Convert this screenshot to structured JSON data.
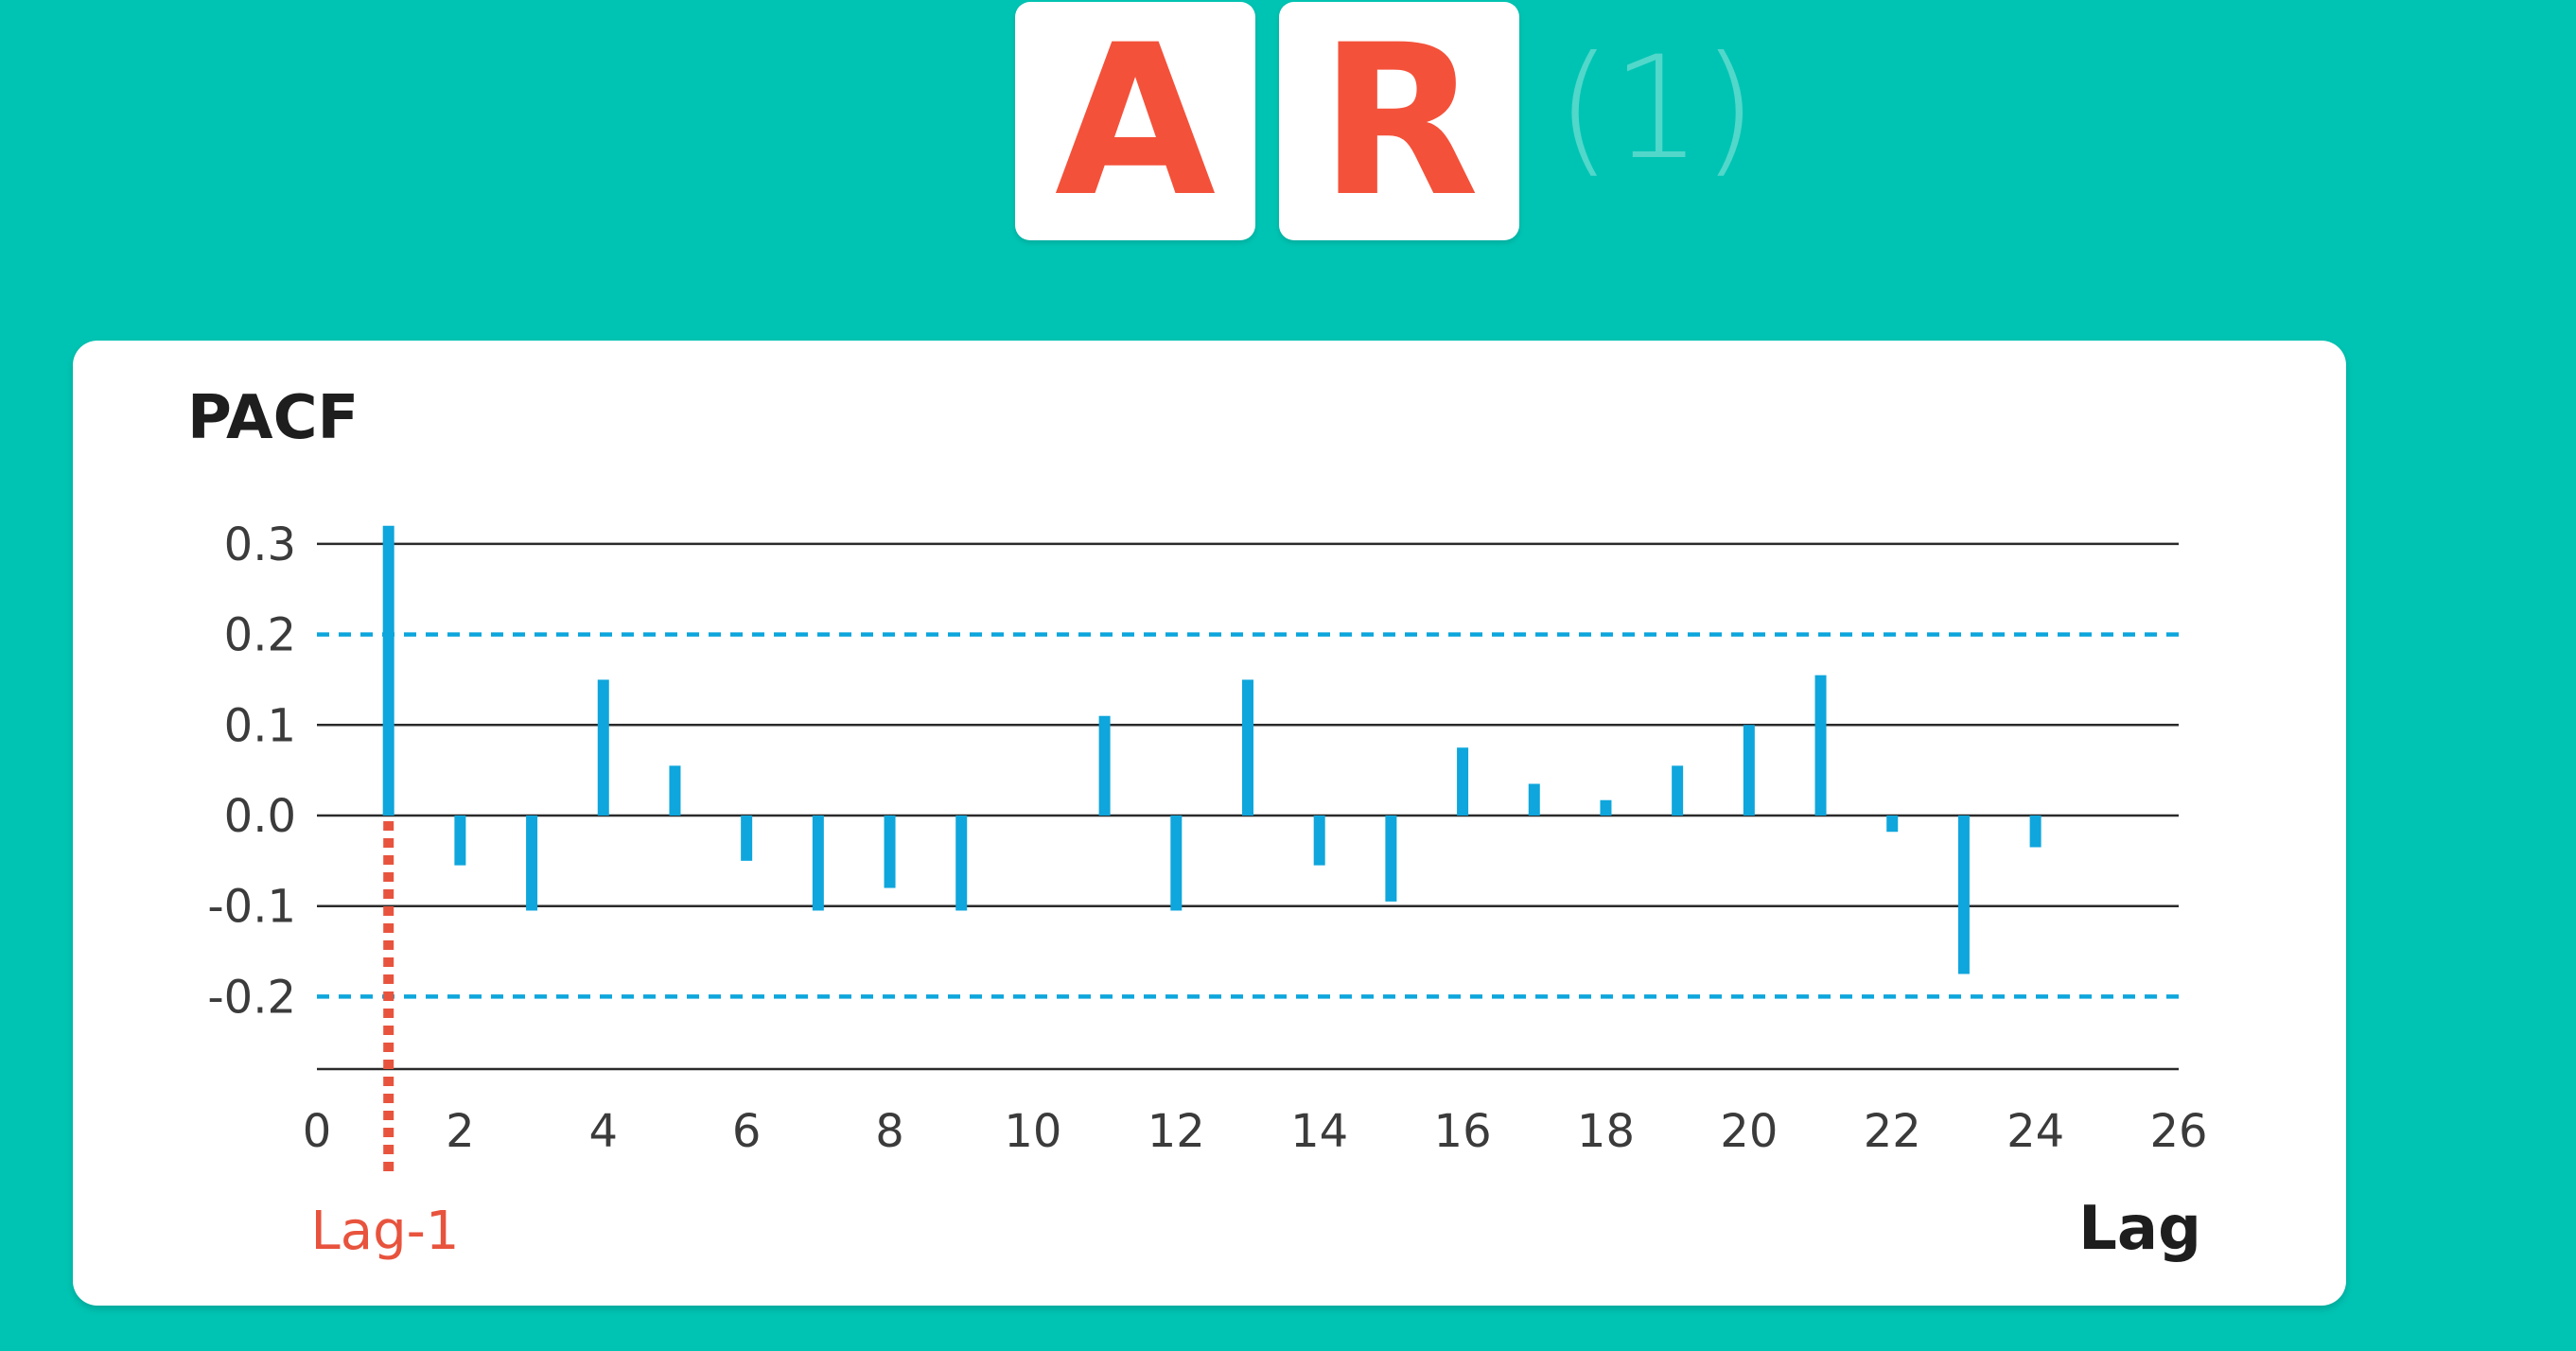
{
  "title": {
    "letters": [
      "A",
      "R"
    ],
    "order": "(1)"
  },
  "colors": {
    "background": "#00c4b3",
    "tile_text": "#f4513a",
    "bars": "#0ea6dc",
    "confidence_band": "#0ea6dc",
    "lag_marker": "#e8533d",
    "gridline": "#2a2a2a"
  },
  "chart_data": {
    "type": "bar",
    "ylabel": "PACF",
    "xlabel": "Lag",
    "xlim": [
      0,
      26
    ],
    "ylim": [
      -0.28,
      0.31
    ],
    "x_ticks": [
      0,
      2,
      4,
      6,
      8,
      10,
      12,
      14,
      16,
      18,
      20,
      22,
      24,
      26
    ],
    "y_ticks": [
      0.3,
      0.2,
      0.1,
      0.0,
      -0.1,
      -0.2
    ],
    "y_tick_labels": [
      "0.3",
      "0.2",
      "0.1",
      "0.0",
      "-0.1",
      "-0.2"
    ],
    "solid_gridlines": [
      0.3,
      0.1,
      0.0,
      -0.1,
      -0.28
    ],
    "confidence_bounds": [
      0.2,
      -0.2
    ],
    "lags": [
      1,
      2,
      3,
      4,
      5,
      6,
      7,
      8,
      9,
      11,
      12,
      13,
      14,
      15,
      16,
      17,
      18,
      19,
      20,
      21,
      22,
      23,
      24
    ],
    "values": [
      0.32,
      -0.055,
      -0.105,
      0.15,
      0.055,
      -0.05,
      -0.105,
      -0.08,
      -0.105,
      0.11,
      -0.105,
      0.15,
      -0.055,
      -0.095,
      0.075,
      0.035,
      0.017,
      0.055,
      0.1,
      0.155,
      -0.018,
      -0.175,
      -0.035
    ],
    "highlight": {
      "lag": 1,
      "label": "Lag-1"
    }
  }
}
